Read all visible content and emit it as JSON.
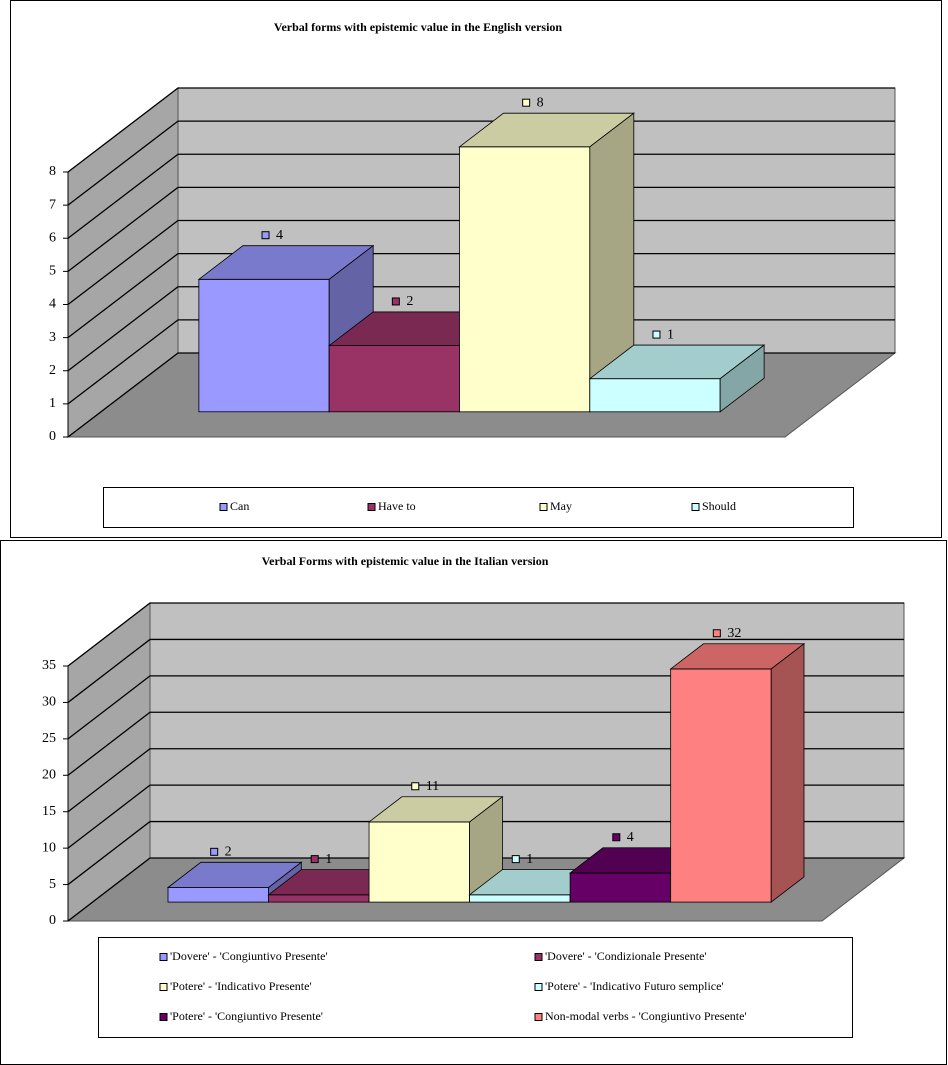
{
  "chart_data": [
    {
      "type": "bar",
      "title": "Verbal forms with epistemic value in the English version",
      "series": [
        {
          "name": "Can",
          "color": "#9999ff",
          "values": [
            4
          ]
        },
        {
          "name": "Have to",
          "color": "#993366",
          "values": [
            2
          ]
        },
        {
          "name": "May",
          "color": "#ffffcc",
          "values": [
            8
          ]
        },
        {
          "name": "Should",
          "color": "#ccffff",
          "values": [
            1
          ]
        }
      ],
      "ylim": [
        0,
        8
      ],
      "yticks": [
        0,
        1,
        2,
        3,
        4,
        5,
        6,
        7,
        8
      ],
      "grid": true,
      "legend": "bottom"
    },
    {
      "type": "bar",
      "title": "Verbal Forms with epistemic value in the Italian version",
      "series": [
        {
          "name": "'Dovere' - 'Congiuntivo Presente'",
          "color": "#9999ff",
          "values": [
            2
          ]
        },
        {
          "name": "'Dovere' - 'Condizionale Presente'",
          "color": "#993366",
          "values": [
            1
          ]
        },
        {
          "name": "'Potere' - 'Indicativo Presente'",
          "color": "#ffffcc",
          "values": [
            11
          ]
        },
        {
          "name": "'Potere' - 'Indicativo Futuro semplice'",
          "color": "#ccffff",
          "values": [
            1
          ]
        },
        {
          "name": "'Potere' - 'Congiuntivo Presente'",
          "color": "#660066",
          "values": [
            4
          ]
        },
        {
          "name": "Non-modal verbs - 'Congiuntivo Presente'",
          "color": "#ff8080",
          "values": [
            32
          ]
        }
      ],
      "ylim": [
        0,
        35
      ],
      "yticks": [
        0,
        5,
        10,
        15,
        20,
        25,
        30,
        35
      ],
      "grid": true,
      "legend": "bottom"
    }
  ]
}
